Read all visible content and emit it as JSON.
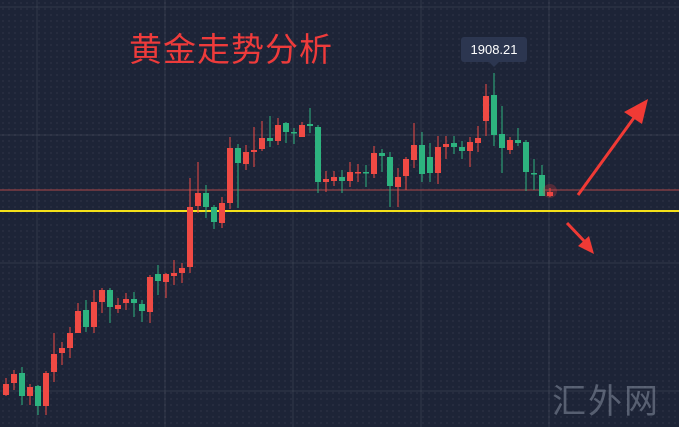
{
  "chart_data": {
    "type": "candlestick",
    "title": "黄金走势分析",
    "annotation": "1908.21",
    "watermark": "汇外网",
    "colors": {
      "up": "#ef4a44",
      "down": "#2db37f",
      "support_line": "#f5e11a",
      "price_line": "#b0474a",
      "arrows": "#f03a35",
      "background": "#1d2437"
    },
    "support_level": 1839.2,
    "last_price_level": 1849.7,
    "projection_arrows": [
      "up",
      "down"
    ],
    "grid": true,
    "ohlc": [
      [
        1747.2,
        1755.7,
        1746.7,
        1752.7
      ],
      [
        1753.2,
        1759.7,
        1749.7,
        1757.7
      ],
      [
        1758.2,
        1761.2,
        1742.2,
        1746.7
      ],
      [
        1746.7,
        1752.7,
        1742.2,
        1751.2
      ],
      [
        1751.7,
        1752.2,
        1737.2,
        1741.7
      ],
      [
        1741.7,
        1759.2,
        1737.2,
        1758.2
      ],
      [
        1758.7,
        1778.2,
        1753.7,
        1767.7
      ],
      [
        1768.2,
        1773.7,
        1762.2,
        1770.7
      ],
      [
        1770.7,
        1781.2,
        1765.7,
        1778.2
      ],
      [
        1778.2,
        1793.2,
        1778.2,
        1789.2
      ],
      [
        1789.7,
        1794.7,
        1778.7,
        1781.2
      ],
      [
        1781.2,
        1799.7,
        1778.2,
        1793.7
      ],
      [
        1793.7,
        1800.7,
        1788.2,
        1799.7
      ],
      [
        1799.7,
        1800.7,
        1783.2,
        1791.2
      ],
      [
        1790.2,
        1795.7,
        1788.2,
        1792.2
      ],
      [
        1793.2,
        1798.2,
        1789.7,
        1795.2
      ],
      [
        1795.2,
        1798.7,
        1786.2,
        1793.2
      ],
      [
        1792.7,
        1794.7,
        1783.7,
        1789.2
      ],
      [
        1788.7,
        1807.2,
        1783.2,
        1806.2
      ],
      [
        1807.7,
        1812.2,
        1797.2,
        1804.2
      ],
      [
        1803.7,
        1808.2,
        1795.7,
        1807.7
      ],
      [
        1806.7,
        1814.7,
        1802.2,
        1808.2
      ],
      [
        1808.2,
        1813.2,
        1803.2,
        1810.7
      ],
      [
        1811.2,
        1855.7,
        1808.2,
        1841.2
      ],
      [
        1841.7,
        1863.7,
        1838.2,
        1848.2
      ],
      [
        1848.2,
        1852.2,
        1835.7,
        1841.2
      ],
      [
        1841.2,
        1842.2,
        1830.2,
        1833.7
      ],
      [
        1833.2,
        1846.2,
        1830.7,
        1843.2
      ],
      [
        1843.2,
        1876.2,
        1840.2,
        1870.7
      ],
      [
        1870.7,
        1872.7,
        1840.7,
        1863.2
      ],
      [
        1862.7,
        1872.2,
        1859.7,
        1868.7
      ],
      [
        1868.7,
        1881.2,
        1861.2,
        1869.7
      ],
      [
        1870.2,
        1884.2,
        1869.2,
        1875.7
      ],
      [
        1875.7,
        1886.7,
        1871.2,
        1874.2
      ],
      [
        1874.2,
        1885.7,
        1872.2,
        1882.2
      ],
      [
        1883.2,
        1883.7,
        1873.2,
        1878.7
      ],
      [
        1878.7,
        1880.7,
        1872.7,
        1878.2
      ],
      [
        1876.2,
        1883.7,
        1876.2,
        1882.2
      ],
      [
        1882.7,
        1890.7,
        1878.2,
        1881.7
      ],
      [
        1881.2,
        1882.2,
        1848.2,
        1853.7
      ],
      [
        1853.7,
        1859.2,
        1848.7,
        1855.2
      ],
      [
        1854.2,
        1859.2,
        1851.7,
        1856.2
      ],
      [
        1856.2,
        1859.7,
        1848.2,
        1854.2
      ],
      [
        1854.2,
        1863.7,
        1851.2,
        1858.7
      ],
      [
        1858.2,
        1862.7,
        1853.7,
        1858.7
      ],
      [
        1858.7,
        1862.2,
        1851.2,
        1858.2
      ],
      [
        1857.7,
        1871.7,
        1855.7,
        1868.2
      ],
      [
        1868.2,
        1870.2,
        1858.7,
        1866.7
      ],
      [
        1866.2,
        1868.7,
        1841.2,
        1851.7
      ],
      [
        1851.2,
        1860.7,
        1841.2,
        1856.2
      ],
      [
        1856.7,
        1866.2,
        1849.7,
        1865.2
      ],
      [
        1864.7,
        1883.2,
        1860.7,
        1872.2
      ],
      [
        1872.2,
        1878.7,
        1853.7,
        1857.7
      ],
      [
        1866.2,
        1873.2,
        1853.7,
        1858.2
      ],
      [
        1858.2,
        1876.7,
        1852.7,
        1871.2
      ],
      [
        1871.2,
        1876.7,
        1865.2,
        1872.7
      ],
      [
        1873.2,
        1876.7,
        1867.7,
        1871.2
      ],
      [
        1871.2,
        1874.2,
        1865.2,
        1869.2
      ],
      [
        1869.2,
        1876.2,
        1861.2,
        1873.7
      ],
      [
        1873.2,
        1881.7,
        1868.7,
        1875.7
      ],
      [
        1884.2,
        1902.7,
        1876.7,
        1896.7
      ],
      [
        1897.2,
        1908.21,
        1871.7,
        1877.2
      ],
      [
        1877.7,
        1891.7,
        1858.2,
        1870.7
      ],
      [
        1869.7,
        1876.2,
        1867.7,
        1874.7
      ],
      [
        1874.7,
        1880.7,
        1871.7,
        1873.2
      ],
      [
        1873.7,
        1874.7,
        1849.2,
        1858.7
      ],
      [
        1858.2,
        1865.2,
        1849.7,
        1857.7
      ],
      [
        1857.2,
        1862.2,
        1846.7,
        1846.7
      ],
      [
        1846.7,
        1850.7,
        1846.2,
        1848.7
      ]
    ]
  }
}
